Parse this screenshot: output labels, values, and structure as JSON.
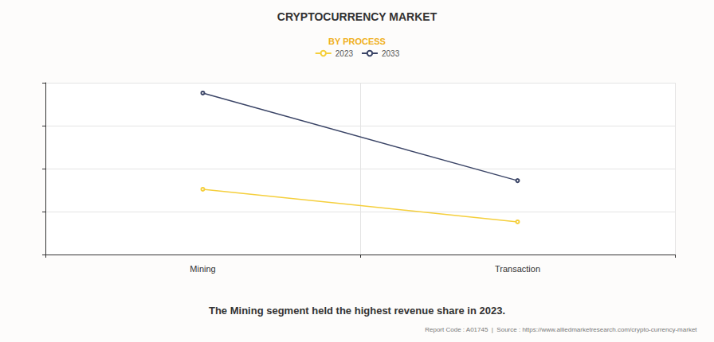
{
  "chart_data": {
    "type": "line",
    "title": "CRYPTOCURRENCY MARKET",
    "subtitle": "BY PROCESS",
    "annotations": [
      "The Mining segment held the highest revenue share in 2023.",
      "Report Code : A01745  |  Source : https://www.alliedmarketresearch.com/crypto-currency-market"
    ],
    "categories": [
      "Mining",
      "Transaction"
    ],
    "series": [
      {
        "name": "2023",
        "color": "#f5cf3c",
        "values": [
          1.52,
          0.76
        ]
      },
      {
        "name": "2033",
        "color": "#3a4466",
        "values": [
          3.76,
          1.72
        ]
      }
    ],
    "ylim": [
      0,
      4
    ],
    "yticks": [
      0,
      1,
      2,
      3,
      4
    ],
    "grid": true,
    "legend": "top",
    "marker": "circle",
    "tick_labels": "x"
  }
}
